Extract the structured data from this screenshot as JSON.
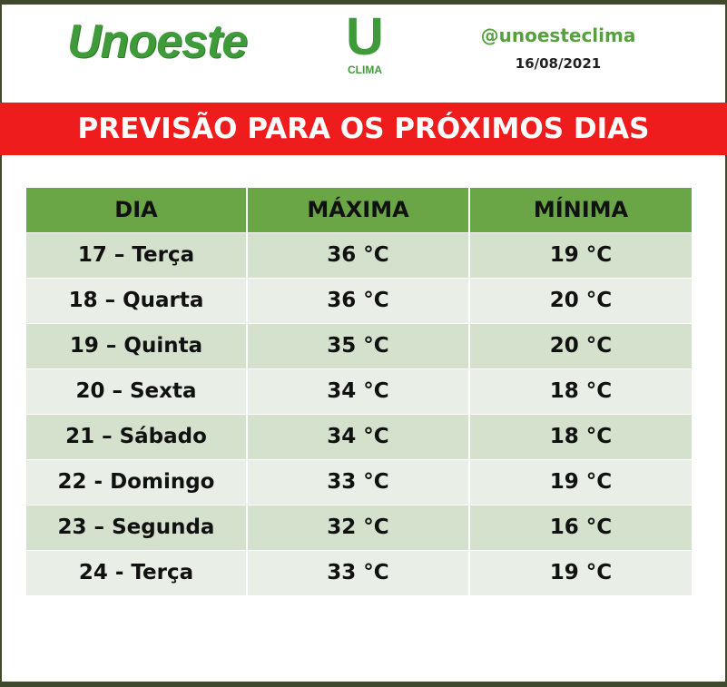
{
  "header": {
    "brand": "Unoeste",
    "logo_letter": "U",
    "logo_caption": "CLIMA",
    "handle": "@unoesteclima",
    "date": "16/08/2021"
  },
  "banner": {
    "title": "PREVISÃO PARA OS PRÓXIMOS DIAS"
  },
  "table": {
    "columns": [
      "DIA",
      "MÁXIMA",
      "MÍNIMA"
    ],
    "rows": [
      [
        "17 – Terça",
        "36 °C",
        "19 °C"
      ],
      [
        "18 – Quarta",
        "36 °C",
        "20 °C"
      ],
      [
        "19 – Quinta",
        "35 °C",
        "20 °C"
      ],
      [
        "20 – Sexta",
        "34 °C",
        "18 °C"
      ],
      [
        "21 – Sábado",
        "34 °C",
        "18 °C"
      ],
      [
        "22 - Domingo",
        "33 °C",
        "19 °C"
      ],
      [
        "23 – Segunda",
        "32 °C",
        "16 °C"
      ],
      [
        "24 - Terça",
        "33 °C",
        "19 °C"
      ]
    ]
  },
  "colors": {
    "brand_green": "#3f9b3a",
    "banner_red": "#ee1c1c",
    "header_green": "#6aa646",
    "row_dark": "#d3e1cd",
    "row_light": "#e9efe6"
  }
}
